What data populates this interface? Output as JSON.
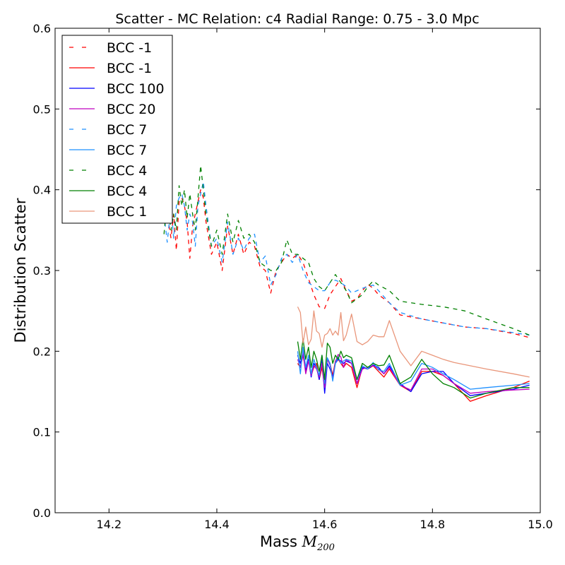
{
  "chart_data": {
    "type": "line",
    "title": "Scatter - MC Relation: c4 Radial Range: 0.75 - 3.0 Mpc",
    "xlabel": "Mass",
    "xlabel_math_symbol": "M",
    "xlabel_math_subscript": "200",
    "ylabel": "Distribution Scatter",
    "xlim": [
      14.1,
      15.0
    ],
    "ylim": [
      0.0,
      0.6
    ],
    "xticks": [
      14.2,
      14.4,
      14.6,
      14.8,
      15.0
    ],
    "xtick_labels": [
      "14.2",
      "14.4",
      "14.6",
      "14.8",
      "15.0"
    ],
    "yticks": [
      0.0,
      0.1,
      0.2,
      0.3,
      0.4,
      0.5,
      0.6
    ],
    "ytick_labels": [
      "0.0",
      "0.1",
      "0.2",
      "0.3",
      "0.4",
      "0.5",
      "0.6"
    ],
    "legend_position": "top-left",
    "series": [
      {
        "name": "BCC -1",
        "color": "#ff0000",
        "style": "dashed",
        "x": [
          14.302,
          14.308,
          14.315,
          14.32,
          14.325,
          14.33,
          14.335,
          14.34,
          14.345,
          14.35,
          14.355,
          14.36,
          14.365,
          14.37,
          14.375,
          14.38,
          14.39,
          14.4,
          14.41,
          14.42,
          14.43,
          14.44,
          14.45,
          14.46,
          14.47,
          14.48,
          14.49,
          14.5,
          14.51,
          14.52,
          14.53,
          14.54,
          14.55,
          14.56,
          14.57,
          14.58,
          14.59,
          14.6,
          14.61,
          14.62,
          14.63,
          14.64,
          14.65,
          14.66,
          14.67,
          14.68,
          14.69,
          14.7,
          14.72,
          14.74,
          14.78,
          14.82,
          14.86,
          14.9,
          14.95,
          14.98
        ],
        "y": [
          0.365,
          0.37,
          0.34,
          0.37,
          0.325,
          0.385,
          0.39,
          0.38,
          0.36,
          0.315,
          0.355,
          0.37,
          0.385,
          0.4,
          0.39,
          0.36,
          0.32,
          0.335,
          0.3,
          0.355,
          0.32,
          0.345,
          0.32,
          0.335,
          0.33,
          0.305,
          0.3,
          0.272,
          0.3,
          0.31,
          0.32,
          0.315,
          0.32,
          0.31,
          0.29,
          0.27,
          0.255,
          0.253,
          0.27,
          0.28,
          0.29,
          0.275,
          0.262,
          0.265,
          0.275,
          0.283,
          0.278,
          0.27,
          0.26,
          0.245,
          0.24,
          0.235,
          0.23,
          0.228,
          0.222,
          0.217
        ]
      },
      {
        "name": "BCC -1",
        "color": "#ff0000",
        "style": "solid",
        "x": [
          14.55,
          14.555,
          14.56,
          14.565,
          14.57,
          14.575,
          14.58,
          14.585,
          14.59,
          14.595,
          14.6,
          14.605,
          14.61,
          14.615,
          14.62,
          14.625,
          14.63,
          14.635,
          14.64,
          14.65,
          14.66,
          14.67,
          14.68,
          14.69,
          14.7,
          14.71,
          14.72,
          14.74,
          14.76,
          14.78,
          14.8,
          14.82,
          14.84,
          14.87,
          14.9,
          14.95,
          14.98
        ],
        "y": [
          0.185,
          0.18,
          0.195,
          0.175,
          0.19,
          0.17,
          0.18,
          0.185,
          0.165,
          0.18,
          0.155,
          0.19,
          0.185,
          0.17,
          0.188,
          0.19,
          0.185,
          0.18,
          0.185,
          0.18,
          0.155,
          0.18,
          0.178,
          0.182,
          0.175,
          0.168,
          0.178,
          0.158,
          0.15,
          0.175,
          0.175,
          0.17,
          0.16,
          0.138,
          0.145,
          0.155,
          0.163
        ]
      },
      {
        "name": "BCC 100",
        "color": "#0000ff",
        "style": "solid",
        "x": [
          14.55,
          14.555,
          14.56,
          14.565,
          14.57,
          14.575,
          14.58,
          14.585,
          14.59,
          14.595,
          14.6,
          14.605,
          14.61,
          14.615,
          14.62,
          14.625,
          14.63,
          14.635,
          14.64,
          14.65,
          14.66,
          14.67,
          14.68,
          14.69,
          14.7,
          14.71,
          14.72,
          14.74,
          14.76,
          14.78,
          14.8,
          14.82,
          14.84,
          14.87,
          14.9,
          14.95,
          14.98
        ],
        "y": [
          0.195,
          0.185,
          0.2,
          0.175,
          0.19,
          0.168,
          0.185,
          0.18,
          0.165,
          0.19,
          0.148,
          0.185,
          0.178,
          0.168,
          0.185,
          0.19,
          0.188,
          0.185,
          0.188,
          0.185,
          0.16,
          0.18,
          0.178,
          0.183,
          0.18,
          0.172,
          0.182,
          0.16,
          0.15,
          0.172,
          0.175,
          0.175,
          0.16,
          0.145,
          0.148,
          0.153,
          0.158
        ]
      },
      {
        "name": "BCC 20",
        "color": "#bf00bf",
        "style": "solid",
        "x": [
          14.55,
          14.555,
          14.56,
          14.565,
          14.57,
          14.575,
          14.58,
          14.585,
          14.59,
          14.595,
          14.6,
          14.605,
          14.61,
          14.615,
          14.62,
          14.625,
          14.63,
          14.635,
          14.64,
          14.65,
          14.66,
          14.67,
          14.68,
          14.69,
          14.7,
          14.71,
          14.72,
          14.74,
          14.76,
          14.78,
          14.8,
          14.82,
          14.84,
          14.87,
          14.9,
          14.95,
          14.98
        ],
        "y": [
          0.19,
          0.18,
          0.198,
          0.172,
          0.188,
          0.17,
          0.182,
          0.178,
          0.168,
          0.185,
          0.155,
          0.19,
          0.183,
          0.165,
          0.187,
          0.196,
          0.193,
          0.18,
          0.19,
          0.185,
          0.16,
          0.178,
          0.18,
          0.182,
          0.178,
          0.172,
          0.18,
          0.158,
          0.152,
          0.178,
          0.178,
          0.17,
          0.16,
          0.148,
          0.15,
          0.152,
          0.153
        ]
      },
      {
        "name": "BCC 7",
        "color": "#1e90ff",
        "style": "dashed",
        "x": [
          14.302,
          14.308,
          14.315,
          14.32,
          14.325,
          14.33,
          14.335,
          14.34,
          14.345,
          14.35,
          14.355,
          14.36,
          14.365,
          14.37,
          14.375,
          14.38,
          14.39,
          14.4,
          14.41,
          14.42,
          14.43,
          14.44,
          14.45,
          14.46,
          14.47,
          14.48,
          14.49,
          14.5,
          14.51,
          14.52,
          14.53,
          14.54,
          14.55,
          14.56,
          14.57,
          14.58,
          14.59,
          14.6,
          14.61,
          14.62,
          14.63,
          14.64,
          14.65,
          14.66,
          14.67,
          14.68,
          14.69,
          14.7,
          14.72,
          14.74,
          14.78,
          14.82,
          14.86,
          14.9,
          14.95,
          14.98
        ],
        "y": [
          0.37,
          0.335,
          0.38,
          0.34,
          0.38,
          0.39,
          0.395,
          0.38,
          0.35,
          0.37,
          0.36,
          0.33,
          0.38,
          0.395,
          0.41,
          0.38,
          0.33,
          0.34,
          0.31,
          0.36,
          0.32,
          0.34,
          0.325,
          0.34,
          0.345,
          0.31,
          0.318,
          0.282,
          0.295,
          0.315,
          0.32,
          0.31,
          0.32,
          0.3,
          0.285,
          0.28,
          0.275,
          0.275,
          0.285,
          0.288,
          0.285,
          0.28,
          0.272,
          0.275,
          0.278,
          0.28,
          0.282,
          0.275,
          0.26,
          0.248,
          0.24,
          0.235,
          0.23,
          0.228,
          0.223,
          0.22
        ]
      },
      {
        "name": "BCC 7",
        "color": "#1e90ff",
        "style": "solid",
        "x": [
          14.55,
          14.555,
          14.56,
          14.565,
          14.57,
          14.575,
          14.58,
          14.585,
          14.59,
          14.595,
          14.6,
          14.605,
          14.61,
          14.615,
          14.62,
          14.625,
          14.63,
          14.635,
          14.64,
          14.65,
          14.66,
          14.67,
          14.68,
          14.69,
          14.7,
          14.71,
          14.72,
          14.74,
          14.76,
          14.78,
          14.8,
          14.82,
          14.84,
          14.87,
          14.9,
          14.95,
          14.98
        ],
        "y": [
          0.2,
          0.172,
          0.205,
          0.18,
          0.195,
          0.172,
          0.19,
          0.18,
          0.17,
          0.195,
          0.16,
          0.192,
          0.185,
          0.163,
          0.185,
          0.193,
          0.185,
          0.188,
          0.19,
          0.188,
          0.165,
          0.182,
          0.178,
          0.186,
          0.177,
          0.175,
          0.185,
          0.158,
          0.163,
          0.185,
          0.18,
          0.172,
          0.165,
          0.153,
          0.155,
          0.158,
          0.16
        ]
      },
      {
        "name": "BCC 4",
        "color": "#008000",
        "style": "dashed",
        "x": [
          14.302,
          14.308,
          14.315,
          14.32,
          14.325,
          14.33,
          14.335,
          14.34,
          14.345,
          14.35,
          14.355,
          14.36,
          14.365,
          14.37,
          14.375,
          14.38,
          14.39,
          14.4,
          14.41,
          14.42,
          14.43,
          14.44,
          14.45,
          14.46,
          14.47,
          14.48,
          14.49,
          14.5,
          14.51,
          14.52,
          14.53,
          14.54,
          14.55,
          14.56,
          14.57,
          14.58,
          14.59,
          14.6,
          14.61,
          14.62,
          14.63,
          14.64,
          14.65,
          14.66,
          14.67,
          14.68,
          14.69,
          14.7,
          14.72,
          14.74,
          14.78,
          14.82,
          14.86,
          14.9,
          14.95,
          14.98
        ],
        "y": [
          0.345,
          0.39,
          0.35,
          0.37,
          0.35,
          0.405,
          0.38,
          0.4,
          0.365,
          0.395,
          0.37,
          0.35,
          0.39,
          0.43,
          0.4,
          0.37,
          0.33,
          0.35,
          0.32,
          0.37,
          0.335,
          0.362,
          0.34,
          0.345,
          0.335,
          0.31,
          0.305,
          0.3,
          0.3,
          0.31,
          0.338,
          0.32,
          0.32,
          0.315,
          0.31,
          0.29,
          0.28,
          0.275,
          0.285,
          0.295,
          0.285,
          0.275,
          0.26,
          0.265,
          0.27,
          0.28,
          0.287,
          0.282,
          0.275,
          0.262,
          0.258,
          0.255,
          0.25,
          0.24,
          0.228,
          0.22
        ]
      },
      {
        "name": "BCC 4",
        "color": "#008000",
        "style": "solid",
        "x": [
          14.55,
          14.555,
          14.56,
          14.565,
          14.57,
          14.575,
          14.58,
          14.585,
          14.59,
          14.595,
          14.6,
          14.605,
          14.61,
          14.615,
          14.62,
          14.625,
          14.63,
          14.635,
          14.64,
          14.65,
          14.66,
          14.67,
          14.68,
          14.69,
          14.7,
          14.71,
          14.72,
          14.74,
          14.76,
          14.78,
          14.8,
          14.82,
          14.84,
          14.87,
          14.9,
          14.95,
          14.98
        ],
        "y": [
          0.212,
          0.19,
          0.215,
          0.19,
          0.205,
          0.18,
          0.2,
          0.19,
          0.175,
          0.195,
          0.165,
          0.21,
          0.205,
          0.185,
          0.195,
          0.19,
          0.2,
          0.192,
          0.195,
          0.192,
          0.165,
          0.185,
          0.18,
          0.185,
          0.182,
          0.183,
          0.195,
          0.16,
          0.168,
          0.19,
          0.172,
          0.16,
          0.155,
          0.142,
          0.148,
          0.155,
          0.155
        ]
      },
      {
        "name": "BCC 1",
        "color": "#e9967a",
        "style": "solid",
        "x": [
          14.55,
          14.555,
          14.56,
          14.565,
          14.57,
          14.575,
          14.58,
          14.585,
          14.59,
          14.595,
          14.6,
          14.605,
          14.61,
          14.615,
          14.62,
          14.625,
          14.63,
          14.635,
          14.64,
          14.65,
          14.66,
          14.67,
          14.68,
          14.69,
          14.7,
          14.71,
          14.72,
          14.74,
          14.76,
          14.78,
          14.8,
          14.82,
          14.84,
          14.87,
          14.9,
          14.95,
          14.98
        ],
        "y": [
          0.255,
          0.248,
          0.21,
          0.23,
          0.208,
          0.215,
          0.25,
          0.225,
          0.222,
          0.205,
          0.22,
          0.222,
          0.228,
          0.22,
          0.225,
          0.22,
          0.248,
          0.213,
          0.22,
          0.246,
          0.212,
          0.208,
          0.212,
          0.22,
          0.218,
          0.218,
          0.238,
          0.2,
          0.182,
          0.2,
          0.195,
          0.19,
          0.186,
          0.182,
          0.178,
          0.172,
          0.168
        ]
      }
    ]
  }
}
